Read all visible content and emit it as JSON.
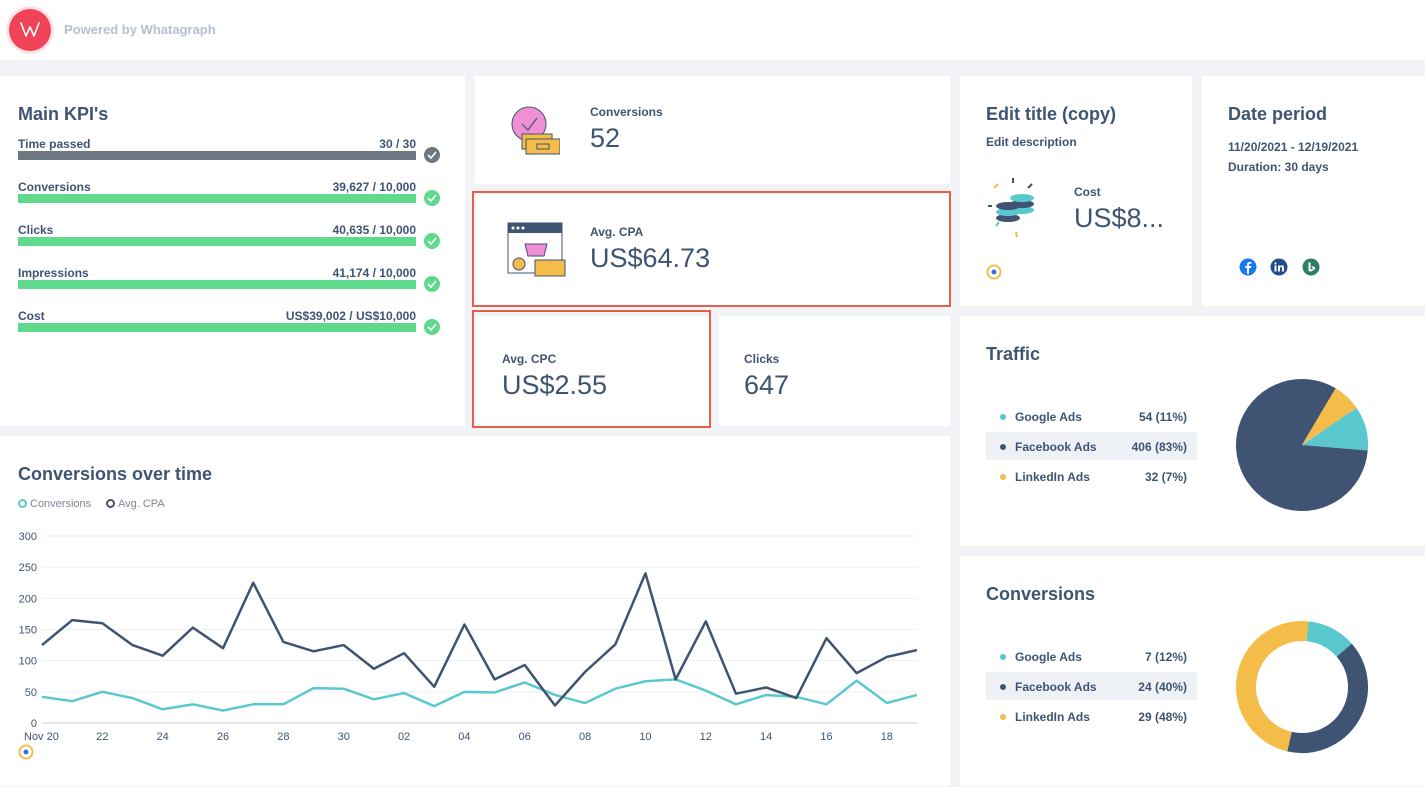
{
  "header": {
    "powered_by": "Powered by Whatagraph"
  },
  "kpis": {
    "title": "Main KPI's",
    "items": [
      {
        "label": "Time passed",
        "value": "30 / 30",
        "progress": 1.0,
        "status": "grey"
      },
      {
        "label": "Conversions",
        "value": "39,627 / 10,000",
        "progress": 1.0,
        "status": "green"
      },
      {
        "label": "Clicks",
        "value": "40,635 / 10,000",
        "progress": 1.0,
        "status": "green"
      },
      {
        "label": "Impressions",
        "value": "41,174 / 10,000",
        "progress": 1.0,
        "status": "green"
      },
      {
        "label": "Cost",
        "value": "US$39,002 / US$10,000",
        "progress": 1.0,
        "status": "green"
      }
    ]
  },
  "metrics": {
    "conversions": {
      "label": "Conversions",
      "value": "52"
    },
    "avg_cpa": {
      "label": "Avg. CPA",
      "value": "US$64.73"
    },
    "avg_cpc": {
      "label": "Avg. CPC",
      "value": "US$2.55"
    },
    "clicks": {
      "label": "Clicks",
      "value": "647"
    }
  },
  "edit_card": {
    "title": "Edit title (copy)",
    "description": "Edit description",
    "cost_label": "Cost",
    "cost_value": "US$8..."
  },
  "date_card": {
    "title": "Date period",
    "range": "11/20/2021 - 12/19/2021",
    "duration": "Duration:  30 days",
    "source_icons": [
      "facebook-icon",
      "linkedin-icon",
      "bing-icon"
    ]
  },
  "traffic": {
    "title": "Traffic",
    "rows": [
      {
        "name": "Google Ads",
        "value": "54  (11%)",
        "color": "#5ac8cf",
        "share": 11
      },
      {
        "name": "Facebook Ads",
        "value": "406  (83%)",
        "color": "#3f5472",
        "share": 83
      },
      {
        "name": "LinkedIn Ads",
        "value": "32  (7%)",
        "color": "#f4bc48",
        "share": 7
      }
    ]
  },
  "conversions_breakdown": {
    "title": "Conversions",
    "rows": [
      {
        "name": "Google Ads",
        "value": "7  (12%)",
        "color": "#5ac8cf",
        "share": 12
      },
      {
        "name": "Facebook Ads",
        "value": "24  (40%)",
        "color": "#3f5472",
        "share": 40
      },
      {
        "name": "LinkedIn Ads",
        "value": "29  (48%)",
        "color": "#f4bc48",
        "share": 48
      }
    ]
  },
  "chart_data": {
    "type": "line",
    "title": "Conversions over time",
    "xlabel": "",
    "ylabel": "",
    "ylim": [
      0,
      300
    ],
    "yticks": [
      0,
      50,
      100,
      150,
      200,
      250,
      300
    ],
    "xtick_labels": [
      "Nov 20",
      "22",
      "24",
      "26",
      "28",
      "30",
      "02",
      "04",
      "06",
      "08",
      "10",
      "12",
      "14",
      "16",
      "18"
    ],
    "x": [
      "Nov 20",
      "21",
      "22",
      "23",
      "24",
      "25",
      "26",
      "27",
      "28",
      "29",
      "30",
      "Dec 1",
      "02",
      "03",
      "04",
      "05",
      "06",
      "07",
      "08",
      "09",
      "10",
      "11",
      "12",
      "13",
      "14",
      "15",
      "16",
      "17",
      "18",
      "19"
    ],
    "series": [
      {
        "name": "Conversions",
        "color": "#5ac8cf",
        "values": [
          42,
          35,
          50,
          40,
          22,
          30,
          20,
          30,
          30,
          56,
          55,
          38,
          48,
          27,
          50,
          49,
          65,
          45,
          32,
          55,
          67,
          70,
          52,
          30,
          45,
          42,
          30,
          68,
          32,
          45
        ]
      },
      {
        "name": "Avg. CPA",
        "color": "#3f5472",
        "values": [
          125,
          165,
          160,
          125,
          108,
          153,
          120,
          225,
          130,
          115,
          125,
          87,
          112,
          58,
          158,
          70,
          93,
          28,
          82,
          126,
          240,
          70,
          163,
          47,
          57,
          40,
          136,
          80,
          106,
          117
        ]
      }
    ],
    "grid": true,
    "legend": "top-left"
  },
  "colors": {
    "accent": "#f0435a",
    "green": "#5fd98b",
    "navy": "#3f5472",
    "teal": "#5ac8cf",
    "yellow": "#f4bc48",
    "highlight": "#e5604a"
  }
}
